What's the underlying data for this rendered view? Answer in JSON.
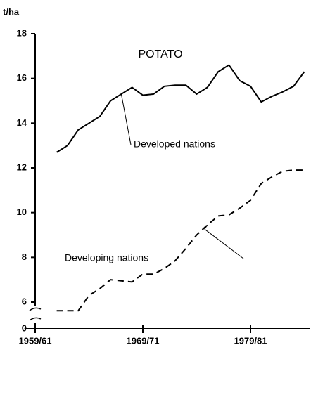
{
  "chart_data": {
    "type": "line",
    "title": "POTATO",
    "y_unit_label": "t/ha",
    "x": [
      1962,
      1963,
      1964,
      1965,
      1966,
      1967,
      1968,
      1969,
      1970,
      1971,
      1972,
      1973,
      1974,
      1975,
      1976,
      1977,
      1978,
      1979,
      1980,
      1981,
      1982,
      1983,
      1984,
      1985
    ],
    "series": [
      {
        "name": "Developed nations",
        "color": "#000000",
        "dash": false,
        "values": [
          12.7,
          13.0,
          13.7,
          14.0,
          14.3,
          15.0,
          15.3,
          15.6,
          15.25,
          15.3,
          15.65,
          15.7,
          15.7,
          15.3,
          15.6,
          16.3,
          16.6,
          15.9,
          15.65,
          14.95,
          15.2,
          15.4,
          15.65,
          16.3
        ]
      },
      {
        "name": "Developing nations",
        "color": "#000000",
        "dash": true,
        "values": [
          5.95,
          5.95,
          5.95,
          6.3,
          6.6,
          7.0,
          6.95,
          6.9,
          7.25,
          7.25,
          7.5,
          7.85,
          8.4,
          9.0,
          9.45,
          9.85,
          9.9,
          10.2,
          10.55,
          11.3,
          11.6,
          11.85,
          11.9,
          11.9
        ]
      }
    ],
    "xlim": [
      1959,
      1986
    ],
    "xticks": [
      {
        "value": 1960,
        "label": "1959/61"
      },
      {
        "value": 1970,
        "label": "1969/71"
      },
      {
        "value": 1980,
        "label": "1979/81"
      }
    ],
    "ylim": [
      0,
      18
    ],
    "yticks": [
      0,
      6,
      8,
      10,
      12,
      14,
      16,
      18
    ],
    "axis_break": [
      0,
      6
    ],
    "grid": false
  }
}
